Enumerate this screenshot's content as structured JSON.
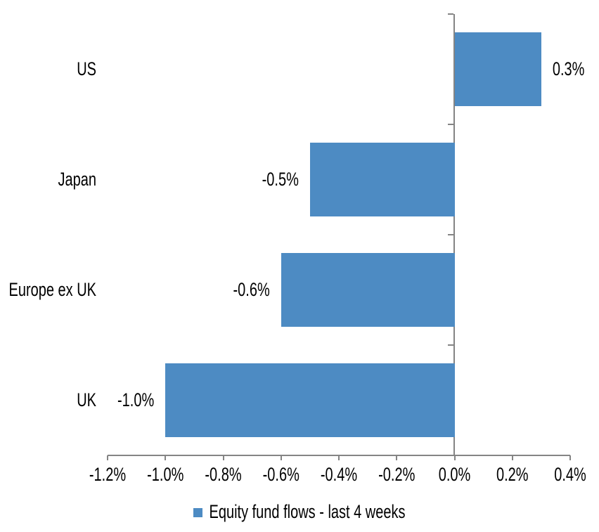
{
  "chart_data": {
    "type": "bar",
    "orientation": "horizontal",
    "title": "",
    "categories": [
      "US",
      "Japan",
      "Europe ex UK",
      "UK"
    ],
    "values": [
      0.3,
      -0.5,
      -0.6,
      -1.0
    ],
    "value_labels": [
      "0.3%",
      "-0.5%",
      "-0.6%",
      "-1.0%"
    ],
    "series_name": "Equity fund flows - last 4 weeks",
    "legend_label": "Equity fund flows - last 4 weeks",
    "legend_position": "bottom",
    "xlabel": "",
    "ylabel": "",
    "xlim": [
      -1.2,
      0.4
    ],
    "x_ticks": [
      -1.2,
      -1.0,
      -0.8,
      -0.6,
      -0.4,
      -0.2,
      0.0,
      0.2,
      0.4
    ],
    "x_tick_labels": [
      "-1.2%",
      "-1.0%",
      "-0.8%",
      "-0.6%",
      "-0.4%",
      "-0.2%",
      "0.0%",
      "0.2%",
      "0.4%"
    ],
    "grid": false,
    "data_labels": "outside-end",
    "colors": {
      "bar": "#4D8BC3",
      "axis": "#848484",
      "text": "#000000",
      "background": "#FFFFFF"
    }
  }
}
